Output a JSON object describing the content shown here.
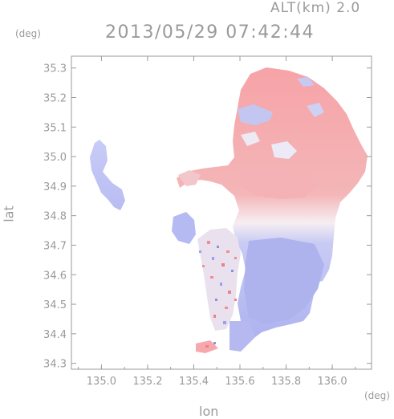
{
  "header": {
    "altitude_label": "ALT(km) 2.0",
    "timestamp": "2013/05/29 07:42:44"
  },
  "axes": {
    "lat_unit": "(deg)",
    "lon_unit": "(deg)",
    "xlabel": "lon",
    "ylabel": "lat",
    "x_ticks": [
      "135.0",
      "135.2",
      "135.4",
      "135.6",
      "135.8",
      "136.0"
    ],
    "y_ticks": [
      "35.3",
      "35.2",
      "35.1",
      "35.0",
      "34.9",
      "34.8",
      "34.7",
      "34.6",
      "34.5",
      "34.4",
      "34.3"
    ],
    "xlim": [
      134.87,
      136.17
    ],
    "ylim": [
      34.28,
      35.34
    ]
  },
  "colors": {
    "frame": "#9a9a9a",
    "toward": "#f4a0a4",
    "away": "#a8aef2",
    "neutral": "#f4eef4"
  }
}
